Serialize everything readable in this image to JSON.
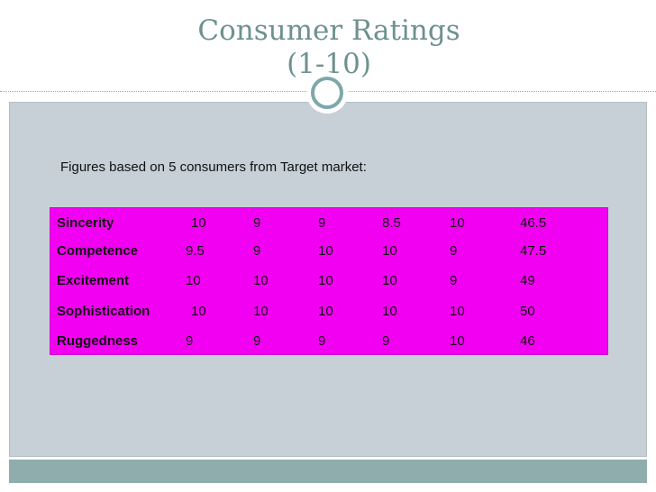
{
  "slide": {
    "title_line1": "Consumer Ratings",
    "title_line2": "(1-10)",
    "subtitle": "Figures based on 5 consumers from Target market:"
  },
  "table": {
    "rows": [
      {
        "label": "Sincerity",
        "values": [
          "10",
          "9",
          "9",
          "8.5",
          "10",
          "46.5"
        ]
      },
      {
        "label": "Competence",
        "values": [
          "9.5",
          "9",
          "10",
          "10",
          "9",
          "47.5"
        ]
      },
      {
        "label": "Excitement",
        "values": [
          "10",
          "10",
          "10",
          "10",
          "9",
          "49"
        ]
      },
      {
        "label": "Sophistication",
        "values": [
          "10",
          "10",
          "10",
          "10",
          "10",
          "50"
        ]
      },
      {
        "label": "Ruggedness",
        "values": [
          "9",
          "9",
          "9",
          "9",
          "10",
          "46"
        ]
      }
    ]
  },
  "colors": {
    "title": "#6f9090",
    "content_bg": "#c6d0d6",
    "table_bg": "#f200f2",
    "accent": "#7fa7ab",
    "bottom_bar": "#8fadad"
  }
}
